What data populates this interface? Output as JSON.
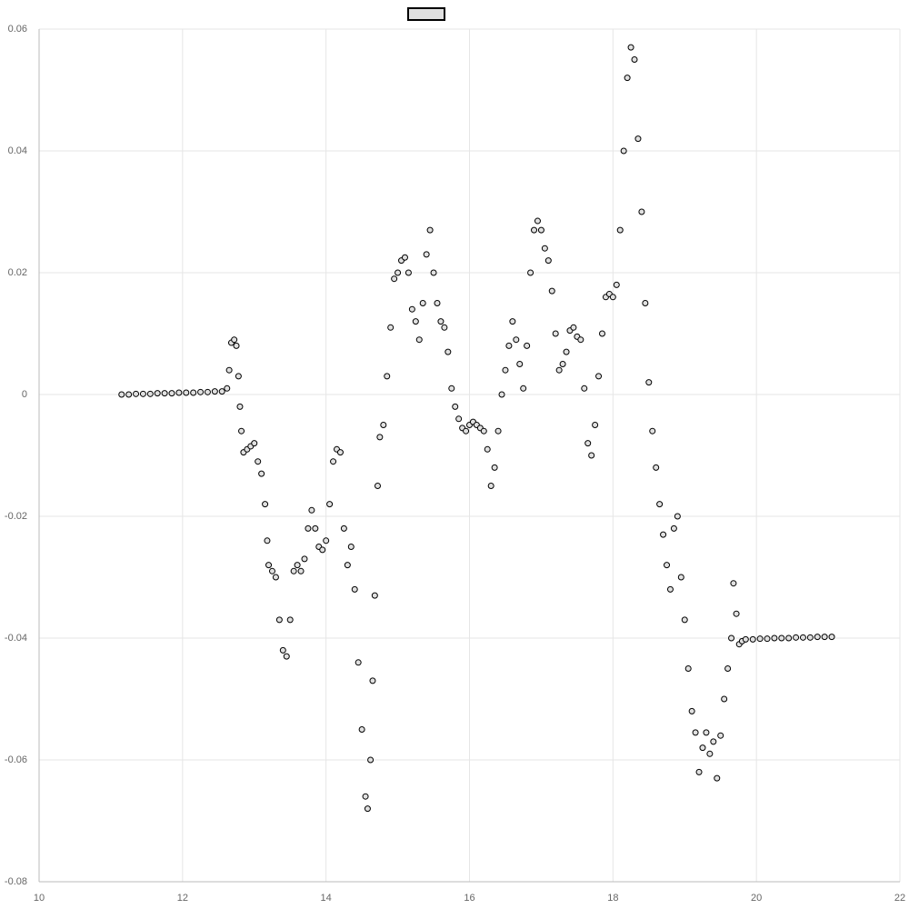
{
  "chart_data": {
    "type": "scatter",
    "color": "#000000",
    "fill": "#e0e0e0",
    "xlim": [
      10,
      22
    ],
    "xticks": [
      10,
      12,
      14,
      16,
      18,
      20,
      22
    ],
    "ylim": [
      -0.08,
      0.06
    ],
    "yticks": [
      -0.08,
      -0.06,
      -0.04,
      -0.02,
      0,
      0.02,
      0.04,
      0.06
    ],
    "grid": true,
    "x": [
      11.15,
      11.25,
      11.35,
      11.45,
      11.55,
      11.65,
      11.75,
      11.85,
      11.95,
      12.05,
      12.15,
      12.25,
      12.35,
      12.45,
      12.55,
      12.62,
      12.65,
      12.68,
      12.72,
      12.75,
      12.78,
      12.8,
      12.82,
      12.85,
      12.9,
      12.95,
      13.0,
      13.05,
      13.1,
      13.15,
      13.18,
      13.2,
      13.25,
      13.3,
      13.35,
      13.4,
      13.45,
      13.5,
      13.55,
      13.6,
      13.65,
      13.7,
      13.75,
      13.8,
      13.85,
      13.9,
      13.95,
      14.0,
      14.05,
      14.1,
      14.15,
      14.2,
      14.25,
      14.3,
      14.35,
      14.4,
      14.45,
      14.5,
      14.55,
      14.58,
      14.62,
      14.65,
      14.68,
      14.72,
      14.75,
      14.8,
      14.85,
      14.9,
      14.95,
      15.0,
      15.05,
      15.1,
      15.15,
      15.2,
      15.25,
      15.3,
      15.35,
      15.4,
      15.45,
      15.5,
      15.55,
      15.6,
      15.65,
      15.7,
      15.75,
      15.8,
      15.85,
      15.9,
      15.95,
      16.0,
      16.05,
      16.1,
      16.15,
      16.2,
      16.25,
      16.3,
      16.35,
      16.4,
      16.45,
      16.5,
      16.55,
      16.6,
      16.65,
      16.7,
      16.75,
      16.8,
      16.85,
      16.9,
      16.95,
      17.0,
      17.05,
      17.1,
      17.15,
      17.2,
      17.25,
      17.3,
      17.35,
      17.4,
      17.45,
      17.5,
      17.55,
      17.6,
      17.65,
      17.7,
      17.75,
      17.8,
      17.85,
      17.9,
      17.95,
      18.0,
      18.05,
      18.1,
      18.15,
      18.2,
      18.25,
      18.3,
      18.35,
      18.4,
      18.45,
      18.5,
      18.55,
      18.6,
      18.65,
      18.7,
      18.75,
      18.8,
      18.85,
      18.9,
      18.95,
      19.0,
      19.05,
      19.1,
      19.15,
      19.2,
      19.25,
      19.3,
      19.35,
      19.4,
      19.45,
      19.5,
      19.55,
      19.6,
      19.65,
      19.68,
      19.72,
      19.76,
      19.8,
      19.85,
      19.95,
      20.05,
      20.15,
      20.25,
      20.35,
      20.45,
      20.55,
      20.65,
      20.75,
      20.85,
      20.95,
      21.05
    ],
    "values": [
      0,
      0,
      0.0001,
      0.0001,
      0.0001,
      0.0002,
      0.0002,
      0.0002,
      0.0003,
      0.0003,
      0.0003,
      0.0004,
      0.0004,
      0.0005,
      0.0005,
      0.001,
      0.004,
      0.0085,
      0.009,
      0.008,
      0.003,
      -0.002,
      -0.006,
      -0.0095,
      -0.009,
      -0.0085,
      -0.008,
      -0.011,
      -0.013,
      -0.018,
      -0.024,
      -0.028,
      -0.029,
      -0.03,
      -0.037,
      -0.042,
      -0.043,
      -0.037,
      -0.029,
      -0.028,
      -0.029,
      -0.027,
      -0.022,
      -0.019,
      -0.022,
      -0.025,
      -0.0255,
      -0.024,
      -0.018,
      -0.011,
      -0.009,
      -0.0095,
      -0.022,
      -0.028,
      -0.025,
      -0.032,
      -0.044,
      -0.055,
      -0.066,
      -0.068,
      -0.06,
      -0.047,
      -0.033,
      -0.015,
      -0.007,
      -0.005,
      0.003,
      0.011,
      0.019,
      0.02,
      0.022,
      0.0225,
      0.02,
      0.014,
      0.012,
      0.009,
      0.015,
      0.023,
      0.027,
      0.02,
      0.015,
      0.012,
      0.011,
      0.007,
      0.001,
      -0.002,
      -0.004,
      -0.0055,
      -0.006,
      -0.005,
      -0.0045,
      -0.005,
      -0.0055,
      -0.006,
      -0.009,
      -0.015,
      -0.012,
      -0.006,
      0,
      0.004,
      0.008,
      0.012,
      0.009,
      0.005,
      0.001,
      0.008,
      0.02,
      0.027,
      0.0285,
      0.027,
      0.024,
      0.022,
      0.017,
      0.01,
      0.004,
      0.005,
      0.007,
      0.0105,
      0.011,
      0.0095,
      0.009,
      0.001,
      -0.008,
      -0.01,
      -0.005,
      0.003,
      0.01,
      0.016,
      0.0165,
      0.016,
      0.018,
      0.027,
      0.04,
      0.052,
      0.057,
      0.055,
      0.042,
      0.03,
      0.015,
      0.002,
      -0.006,
      -0.012,
      -0.018,
      -0.023,
      -0.028,
      -0.032,
      -0.022,
      -0.02,
      -0.03,
      -0.037,
      -0.045,
      -0.052,
      -0.0555,
      -0.062,
      -0.058,
      -0.0555,
      -0.059,
      -0.057,
      -0.063,
      -0.056,
      -0.05,
      -0.045,
      -0.04,
      -0.031,
      -0.036,
      -0.041,
      -0.0405,
      -0.0402,
      -0.0402,
      -0.0401,
      -0.0401,
      -0.04,
      -0.04,
      -0.04,
      -0.0399,
      -0.0399,
      -0.0399,
      -0.0398,
      -0.0398,
      -0.0398
    ]
  }
}
